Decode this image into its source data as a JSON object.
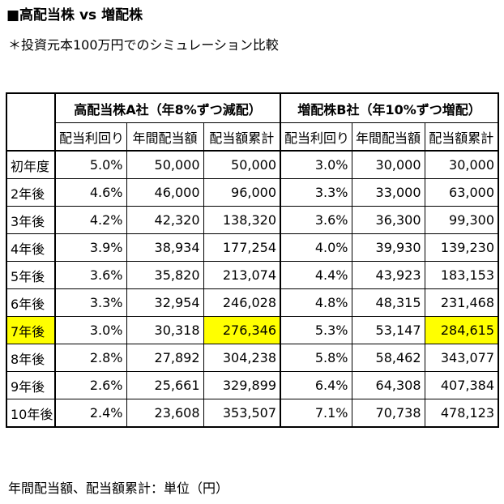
{
  "title": "■高配当株 vs 増配株",
  "subtitle": "＊投資元本100万円でのシミュレーション比較",
  "table": {
    "company_a": "高配当株A社（年8%ずつ減配）",
    "company_b": "増配株B社（年10%ずつ増配）",
    "sub_headers": [
      "配当利回り",
      "年間配当額",
      "配当額累計",
      "配当利回り",
      "年間配当額",
      "配当額累計"
    ],
    "rows": [
      {
        "label": "初年度",
        "cells": [
          "5.0%",
          "50,000",
          "50,000",
          "3.0%",
          "30,000",
          "30,000"
        ]
      },
      {
        "label": "2年後",
        "cells": [
          "4.6%",
          "46,000",
          "96,000",
          "3.3%",
          "33,000",
          "63,000"
        ]
      },
      {
        "label": "3年後",
        "cells": [
          "4.2%",
          "42,320",
          "138,320",
          "3.6%",
          "36,300",
          "99,300"
        ]
      },
      {
        "label": "4年後",
        "cells": [
          "3.9%",
          "38,934",
          "177,254",
          "4.0%",
          "39,930",
          "139,230"
        ]
      },
      {
        "label": "5年後",
        "cells": [
          "3.6%",
          "35,820",
          "213,074",
          "4.4%",
          "43,923",
          "183,153"
        ]
      },
      {
        "label": "6年後",
        "cells": [
          "3.3%",
          "32,954",
          "246,028",
          "4.8%",
          "48,315",
          "231,468"
        ]
      },
      {
        "label": "7年後",
        "cells": [
          "3.0%",
          "30,318",
          "276,346",
          "5.3%",
          "53,147",
          "284,615"
        ]
      },
      {
        "label": "8年後",
        "cells": [
          "2.8%",
          "27,892",
          "304,238",
          "5.8%",
          "58,462",
          "343,077"
        ]
      },
      {
        "label": "9年後",
        "cells": [
          "2.6%",
          "25,661",
          "329,899",
          "6.4%",
          "64,308",
          "407,384"
        ]
      },
      {
        "label": "10年後",
        "cells": [
          "2.4%",
          "23,608",
          "353,507",
          "7.1%",
          "70,738",
          "478,123"
        ]
      }
    ],
    "highlight_color": "#ffff00"
  },
  "note": "年間配当額、配当額累計：単位（円）"
}
